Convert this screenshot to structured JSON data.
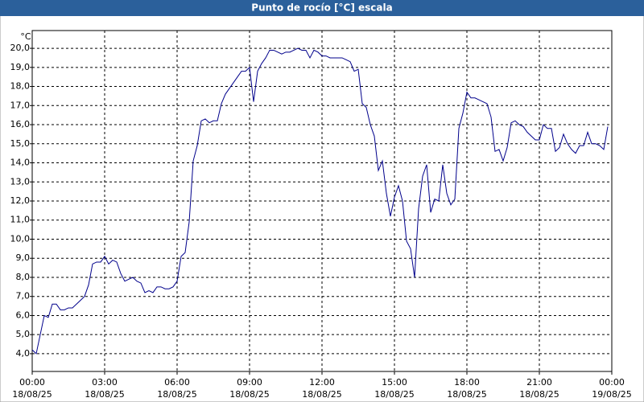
{
  "chart_data": {
    "type": "line",
    "title": "Punto de rocío [°C] escala",
    "y_unit": "°C",
    "color": "#00008b",
    "x": [
      0,
      10,
      20,
      30,
      40,
      50,
      60,
      70,
      80,
      90,
      100,
      110,
      120,
      130,
      140,
      150,
      160,
      170,
      180,
      190,
      200,
      210,
      220,
      230,
      240,
      250,
      260,
      270,
      280,
      290,
      300,
      310,
      320,
      330,
      340,
      350,
      360,
      370,
      380,
      390,
      400,
      410,
      420,
      430,
      440,
      450,
      460,
      470,
      480,
      490,
      500,
      510,
      520,
      530,
      540,
      550,
      560,
      570,
      580,
      590,
      600,
      610,
      620,
      630,
      640,
      650,
      660,
      670,
      680,
      690,
      700,
      710,
      720,
      730,
      740,
      750,
      760,
      770,
      780,
      790,
      800,
      810,
      820,
      830,
      840,
      850,
      860,
      870,
      880,
      890,
      900,
      910,
      920,
      930,
      940,
      950,
      960,
      970,
      980,
      990,
      1000,
      1010,
      1020,
      1030,
      1040,
      1050,
      1060,
      1070,
      1080,
      1090,
      1100,
      1110,
      1120,
      1130,
      1140,
      1150,
      1160,
      1170,
      1180,
      1190,
      1200,
      1210,
      1220,
      1230,
      1240,
      1250,
      1260,
      1270,
      1280,
      1290,
      1300,
      1310,
      1320,
      1330,
      1340,
      1350,
      1360,
      1370,
      1380,
      1390,
      1400,
      1410,
      1420,
      1430
    ],
    "values": [
      4.2,
      4.0,
      5.0,
      6.0,
      5.9,
      6.6,
      6.6,
      6.3,
      6.3,
      6.4,
      6.4,
      6.6,
      6.8,
      7.0,
      7.6,
      8.7,
      8.8,
      8.8,
      9.1,
      8.7,
      8.9,
      8.8,
      8.2,
      7.8,
      7.9,
      8.0,
      7.8,
      7.7,
      7.2,
      7.3,
      7.2,
      7.5,
      7.5,
      7.4,
      7.4,
      7.5,
      7.8,
      9.1,
      9.3,
      10.9,
      14.1,
      14.9,
      16.2,
      16.3,
      16.1,
      16.2,
      16.2,
      17.1,
      17.6,
      17.9,
      18.2,
      18.5,
      18.8,
      18.8,
      19.0,
      17.2,
      18.8,
      19.2,
      19.5,
      19.9,
      19.9,
      19.8,
      19.7,
      19.8,
      19.8,
      19.9,
      20.0,
      19.9,
      19.9,
      19.5,
      19.9,
      19.8,
      19.6,
      19.6,
      19.5,
      19.5,
      19.5,
      19.5,
      19.4,
      19.3,
      18.8,
      18.9,
      17.1,
      16.9,
      16.0,
      15.4,
      13.6,
      14.1,
      12.4,
      11.2,
      12.2,
      12.8,
      12.0,
      9.9,
      9.5,
      8.0,
      11.6,
      13.3,
      13.9,
      11.4,
      12.1,
      12.0,
      13.9,
      12.4,
      11.8,
      12.1,
      15.8,
      16.6,
      17.7,
      17.4,
      17.4,
      17.3,
      17.2,
      17.1,
      16.4,
      14.6,
      14.7,
      14.1,
      14.8,
      16.1,
      16.2,
      16.0,
      15.9,
      15.6,
      15.4,
      15.2,
      15.2,
      16.0,
      15.8,
      15.8,
      14.6,
      14.8,
      15.5,
      15.0,
      14.7,
      14.5,
      14.9,
      14.9,
      15.6,
      15.0,
      15.0,
      14.9,
      14.7,
      15.9
    ],
    "xlim": [
      0,
      1440
    ],
    "xticks": [
      {
        "value": 0,
        "label": "00:00"
      },
      {
        "value": 180,
        "label": "03:00"
      },
      {
        "value": 360,
        "label": "06:00"
      },
      {
        "value": 540,
        "label": "09:00"
      },
      {
        "value": 720,
        "label": "12:00"
      },
      {
        "value": 900,
        "label": "15:00"
      },
      {
        "value": 1080,
        "label": "18:00"
      },
      {
        "value": 1260,
        "label": "21:00"
      },
      {
        "value": 1440,
        "label": "00:00"
      }
    ],
    "xtick_dates": [
      "18/08/25",
      "18/08/25",
      "18/08/25",
      "18/08/25",
      "18/08/25",
      "18/08/25",
      "18/08/25",
      "18/08/25",
      "19/08/25"
    ],
    "ylim": [
      3.07,
      20.93
    ],
    "yticks": [
      {
        "value": 4,
        "label": "4,0"
      },
      {
        "value": 5,
        "label": "5,0"
      },
      {
        "value": 6,
        "label": "6,0"
      },
      {
        "value": 7,
        "label": "7,0"
      },
      {
        "value": 8,
        "label": "8,0"
      },
      {
        "value": 9,
        "label": "9,0"
      },
      {
        "value": 10,
        "label": "10,0"
      },
      {
        "value": 11,
        "label": "11,0"
      },
      {
        "value": 12,
        "label": "12,0"
      },
      {
        "value": 13,
        "label": "13,0"
      },
      {
        "value": 14,
        "label": "14,0"
      },
      {
        "value": 15,
        "label": "15,0"
      },
      {
        "value": 16,
        "label": "16,0"
      },
      {
        "value": 17,
        "label": "17,0"
      },
      {
        "value": 18,
        "label": "18,0"
      },
      {
        "value": 19,
        "label": "19,0"
      },
      {
        "value": 20,
        "label": "20,0"
      }
    ],
    "grid": true
  }
}
